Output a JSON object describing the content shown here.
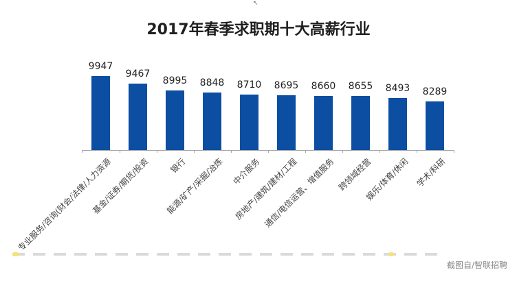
{
  "chart_data": {
    "type": "bar",
    "title": "2017年春季求职期十大高薪行业",
    "xlabel": "",
    "ylabel": "",
    "grid": false,
    "legend": null,
    "categories": [
      "专业服务/咨询(财会/法律/人力资源",
      "基金/证券/期货/投资",
      "银行",
      "能源/矿产/采掘/冶炼",
      "中介服务",
      "房地产/建筑/建材/工程",
      "通信/电信运营、增值服务",
      "跨领域经营",
      "娱乐/体育/休闲",
      "学术/科研"
    ],
    "values": [
      9947,
      9467,
      8995,
      8848,
      8710,
      8695,
      8660,
      8655,
      8493,
      8289
    ],
    "data_labels": [
      "9947",
      "9467",
      "8995",
      "8848",
      "8710",
      "8695",
      "8660",
      "8655",
      "8493",
      "8289"
    ],
    "ylim": [
      5100,
      10000
    ],
    "bar_color": "#0b4ea2"
  },
  "watermark": "截图自/智联招聘",
  "cursor_glyph": "↖"
}
